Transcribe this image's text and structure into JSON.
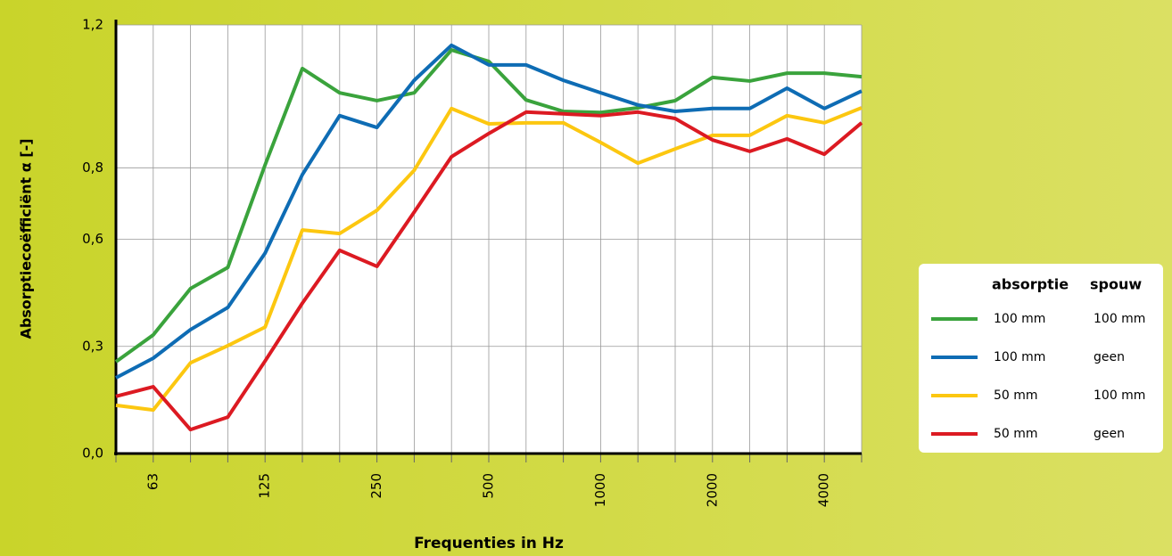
{
  "chart_data": {
    "type": "line",
    "y_label": "Absorptiecoëfficiënt   α [-]",
    "x_label": "Frequenties in Hz",
    "categories": [
      null,
      "63",
      null,
      null,
      "125",
      null,
      null,
      "250",
      null,
      null,
      "500",
      null,
      null,
      "1000",
      null,
      null,
      "2000",
      null,
      null,
      "4000",
      null
    ],
    "ylim": [
      0,
      1.2
    ],
    "yticks": [
      {
        "value": 0,
        "label": "0,0"
      },
      {
        "value": 0.3,
        "label": "0,3"
      },
      {
        "value": 0.6,
        "label": "0,6"
      },
      {
        "value": 0.8,
        "label": "0,8"
      },
      {
        "value": 1.2,
        "label": "1,2"
      }
    ],
    "grid": true,
    "legend_header": [
      "absorptie",
      "spouw"
    ],
    "series": [
      {
        "absorptie": "100 mm",
        "spouw": "100 mm",
        "color": "#3aa33c",
        "values": [
          0.257,
          0.332,
          0.462,
          0.521,
          0.808,
          1.078,
          1.01,
          0.988,
          1.01,
          1.13,
          1.098,
          0.99,
          0.958,
          0.955,
          0.968,
          0.988,
          1.053,
          1.043,
          1.065,
          1.065,
          1.055
        ]
      },
      {
        "absorptie": "100 mm",
        "spouw": "geen",
        "color": "#0e6cb4",
        "values": [
          0.212,
          0.267,
          0.347,
          0.409,
          0.561,
          0.781,
          0.946,
          0.913,
          1.045,
          1.143,
          1.088,
          1.088,
          1.045,
          1.01,
          0.976,
          0.958,
          0.966,
          0.966,
          1.023,
          0.966,
          1.015
        ]
      },
      {
        "absorptie": "50 mm",
        "spouw": "100 mm",
        "color": "#fcc710",
        "values": [
          0.135,
          0.122,
          0.254,
          0.302,
          0.354,
          0.626,
          0.616,
          0.681,
          0.793,
          0.966,
          0.923,
          0.926,
          0.926,
          0.871,
          0.813,
          0.853,
          0.891,
          0.891,
          0.946,
          0.926,
          0.968
        ]
      },
      {
        "absorptie": "50 mm",
        "spouw": "geen",
        "color": "#dc1a22",
        "values": [
          0.16,
          0.187,
          0.067,
          0.102,
          0.259,
          0.421,
          0.569,
          0.524,
          0.676,
          0.831,
          0.896,
          0.956,
          0.951,
          0.946,
          0.956,
          0.938,
          0.878,
          0.846,
          0.881,
          0.838,
          0.926
        ]
      }
    ]
  }
}
